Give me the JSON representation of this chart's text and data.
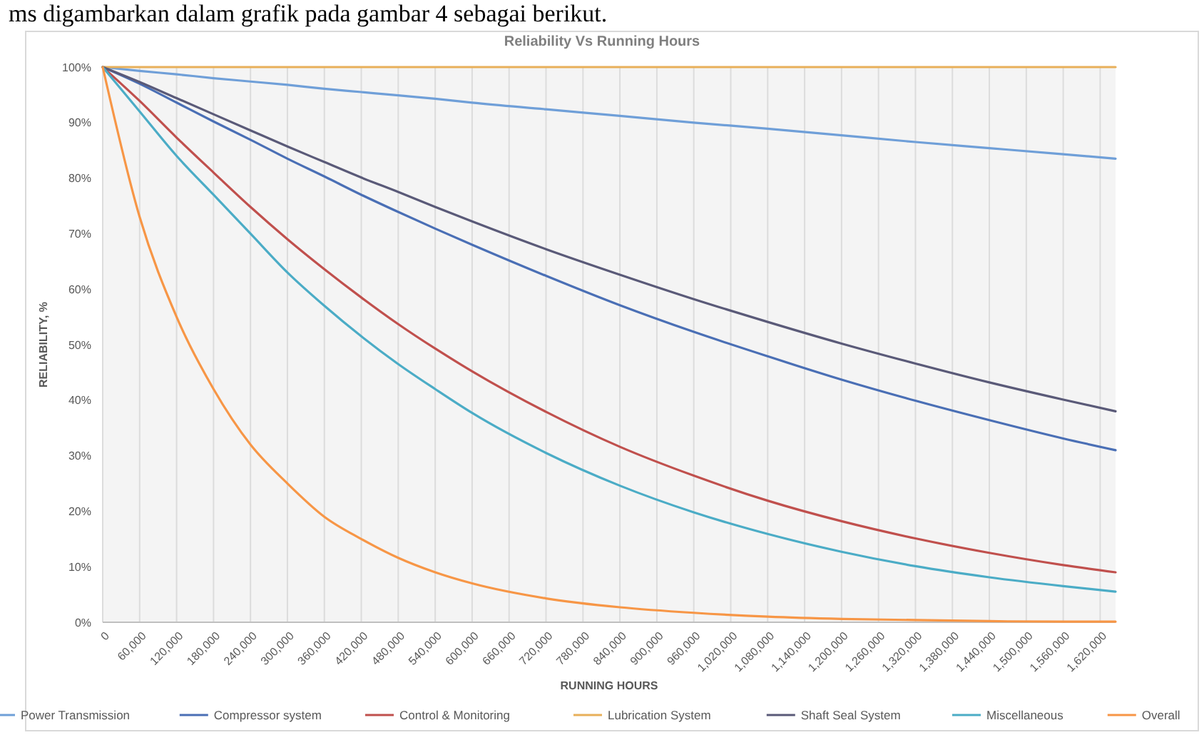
{
  "chart_data": {
    "type": "line",
    "title": "Reliability Vs Running Hours",
    "xlabel": "RUNNING HOURS",
    "ylabel": "RELIABILITY, %",
    "annotations": [
      "ms digambarkan dalam grafik pada gambar 4 sebagai berikut."
    ],
    "x": [
      0,
      60000,
      120000,
      180000,
      240000,
      300000,
      360000,
      420000,
      480000,
      540000,
      600000,
      720000,
      840000,
      960000,
      1080000,
      1200000,
      1320000,
      1440000,
      1560000,
      1645000
    ],
    "series": [
      {
        "name": "Power Transmission",
        "color": "#6f9fd8",
        "values": [
          100,
          99.3,
          98.7,
          98,
          97.4,
          96.8,
          96.1,
          95.5,
          94.9,
          94.3,
          93.6,
          92.4,
          91.2,
          90,
          88.9,
          87.7,
          86.5,
          85.4,
          84.3,
          83.5
        ]
      },
      {
        "name": "Compressor system",
        "color": "#4a6fb5",
        "values": [
          100,
          97,
          93.6,
          90.2,
          86.9,
          83.5,
          80.3,
          77,
          73.9,
          70.9,
          68,
          62.4,
          57.1,
          52.3,
          47.9,
          43.7,
          39.9,
          36.4,
          33.1,
          31
        ]
      },
      {
        "name": "Control & Monitoring",
        "color": "#c0504d",
        "values": [
          100,
          93.9,
          87.3,
          81,
          74.8,
          69,
          63.6,
          58.5,
          53.7,
          49.3,
          45.2,
          37.9,
          31.6,
          26.4,
          21.9,
          18.2,
          15.1,
          12.5,
          10.3,
          9
        ]
      },
      {
        "name": "Lubrication System",
        "color": "#e8b05a",
        "values": [
          100,
          100,
          100,
          100,
          100,
          100,
          100,
          100,
          100,
          100,
          100,
          100,
          100,
          100,
          100,
          100,
          100,
          100,
          100,
          100
        ]
      },
      {
        "name": "Shaft Seal System",
        "color": "#5a5a78",
        "values": [
          100,
          97.3,
          94.4,
          91.5,
          88.6,
          85.7,
          82.9,
          80.1,
          77.5,
          74.8,
          72.2,
          67.2,
          62.6,
          58.2,
          54.1,
          50.2,
          46.6,
          43.2,
          40.1,
          38
        ]
      },
      {
        "name": "Miscellaneous",
        "color": "#4bacc6",
        "values": [
          100,
          92,
          84,
          77,
          70,
          63,
          57,
          51.5,
          46.5,
          42,
          37.7,
          30.5,
          24.6,
          19.8,
          15.9,
          12.7,
          10.1,
          8.1,
          6.5,
          5.5
        ]
      },
      {
        "name": "Overall",
        "color": "#f79646",
        "values": [
          100,
          73,
          55,
          42,
          32,
          25,
          19,
          15,
          11.6,
          9,
          7,
          4.3,
          2.7,
          1.7,
          1,
          0.6,
          0.4,
          0.2,
          0.1,
          0.1
        ]
      }
    ],
    "xlim": [
      0,
      1645000
    ],
    "xticks": [
      {
        "value": 0,
        "label": "0"
      },
      {
        "value": 60000,
        "label": "60,000"
      },
      {
        "value": 120000,
        "label": "120,000"
      },
      {
        "value": 180000,
        "label": "180,000"
      },
      {
        "value": 240000,
        "label": "240,000"
      },
      {
        "value": 300000,
        "label": "300,000"
      },
      {
        "value": 360000,
        "label": "360,000"
      },
      {
        "value": 420000,
        "label": "420,000"
      },
      {
        "value": 480000,
        "label": "480,000"
      },
      {
        "value": 540000,
        "label": "540,000"
      },
      {
        "value": 600000,
        "label": "600,000"
      },
      {
        "value": 660000,
        "label": "660,000"
      },
      {
        "value": 720000,
        "label": "720,000"
      },
      {
        "value": 780000,
        "label": "780,000"
      },
      {
        "value": 840000,
        "label": "840,000"
      },
      {
        "value": 900000,
        "label": "900,000"
      },
      {
        "value": 960000,
        "label": "960,000"
      },
      {
        "value": 1020000,
        "label": "1,020,000"
      },
      {
        "value": 1080000,
        "label": "1,080,000"
      },
      {
        "value": 1140000,
        "label": "1,140,000"
      },
      {
        "value": 1200000,
        "label": "1,200,000"
      },
      {
        "value": 1260000,
        "label": "1,260,000"
      },
      {
        "value": 1320000,
        "label": "1,320,000"
      },
      {
        "value": 1380000,
        "label": "1,380,000"
      },
      {
        "value": 1440000,
        "label": "1,440,000"
      },
      {
        "value": 1500000,
        "label": "1,500,000"
      },
      {
        "value": 1560000,
        "label": "1,560,000"
      },
      {
        "value": 1620000,
        "label": "1,620,000"
      }
    ],
    "ylim": [
      0,
      100
    ],
    "yticks": [
      {
        "value": 0,
        "label": "0%"
      },
      {
        "value": 10,
        "label": "10%"
      },
      {
        "value": 20,
        "label": "20%"
      },
      {
        "value": 30,
        "label": "30%"
      },
      {
        "value": 40,
        "label": "40%"
      },
      {
        "value": 50,
        "label": "50%"
      },
      {
        "value": 60,
        "label": "60%"
      },
      {
        "value": 70,
        "label": "70%"
      },
      {
        "value": 80,
        "label": "80%"
      },
      {
        "value": 90,
        "label": "90%"
      },
      {
        "value": 100,
        "label": "100%"
      }
    ],
    "grid": "x",
    "legend": "bottom",
    "marker": "none",
    "line_style": "solid"
  }
}
